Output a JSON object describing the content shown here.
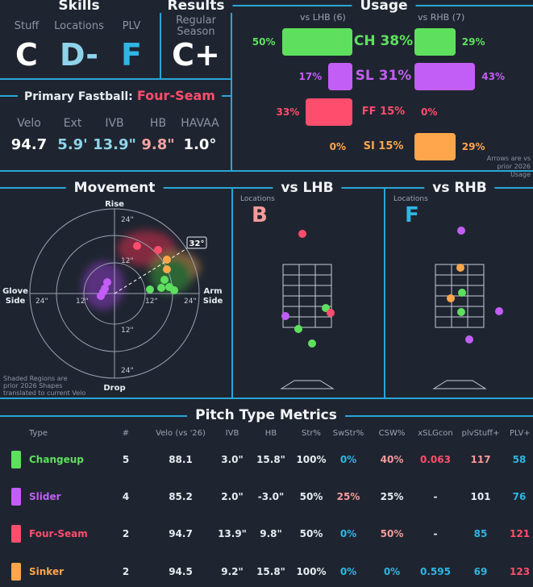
{
  "skills": {
    "title": "Skills",
    "stuff_label": "Stuff",
    "stuff_grade": "C",
    "locations_label": "Locations",
    "locations_grade": "D-",
    "plv_label": "PLV",
    "plv_grade": "F"
  },
  "results": {
    "title": "Results",
    "label_line1": "Regular",
    "label_line2": "Season",
    "grade": "C+"
  },
  "primary_fastball": {
    "label": "Primary Fastball:",
    "pitch": "Four-Seam",
    "metrics": [
      {
        "label": "Velo",
        "value": "94.7"
      },
      {
        "label": "Ext",
        "value": "5.9'"
      },
      {
        "label": "IVB",
        "value": "13.9\""
      },
      {
        "label": "HB",
        "value": "9.8\""
      },
      {
        "label": "HAVAA",
        "value": "1.0°"
      }
    ]
  },
  "usage": {
    "title": "Usage",
    "vs_lhb_label": "vs LHB (6)",
    "vs_rhb_label": "vs RHB (7)",
    "rows": [
      {
        "name": "CH 38%",
        "lhb": "50%",
        "rhb": "29%",
        "lhb_val": 50,
        "rhb_val": 29,
        "color": "#5ee05e"
      },
      {
        "name": "SL 31%",
        "lhb": "17%",
        "rhb": "43%",
        "lhb_val": 17,
        "rhb_val": 43,
        "color": "#c25ef5"
      },
      {
        "name": "FF 15%",
        "lhb": "33%",
        "rhb": "0%",
        "lhb_val": 33,
        "rhb_val": 0,
        "color": "#ff4d6d"
      },
      {
        "name": "SI 15%",
        "lhb": "0%",
        "rhb": "29%",
        "lhb_val": 0,
        "rhb_val": 29,
        "color": "#ffa64d"
      }
    ],
    "note_line1": "Arrows are vs",
    "note_line2": "prior 2026 Usage"
  },
  "movement": {
    "title": "Movement",
    "rise": "Rise",
    "drop": "Drop",
    "glove_line1": "Glove",
    "glove_line2": "Side",
    "arm_line1": "Arm",
    "arm_line2": "Side",
    "arm_angle": "32°",
    "ring_24_top": "24\"",
    "ring_12_top": "12\"",
    "ring_12_bottom": "12\"",
    "ring_24_bottom": "24\"",
    "ring_24_left": "24\"",
    "ring_12_left": "12\"",
    "ring_12_right": "12\"",
    "ring_24_right": "24\"",
    "note_line1": "Shaded Regions are",
    "note_line2": "prior 2026 Shapes",
    "note_line3": "translated to current Velo"
  },
  "vs_lhb": {
    "title": "vs LHB",
    "locations_label": "Locations",
    "grade": "B"
  },
  "vs_rhb": {
    "title": "vs RHB",
    "locations_label": "Locations",
    "grade": "F"
  },
  "metrics_table": {
    "title": "Pitch Type Metrics",
    "headers": [
      "Type",
      "#",
      "Velo (vs '26)",
      "IVB",
      "HB",
      "Str%",
      "SwStr%",
      "CSW%",
      "xSLGcon",
      "plvStuff+",
      "PLV+"
    ],
    "rows": [
      {
        "type": "Changeup",
        "count": "5",
        "velo": "88.1",
        "ivb": "3.0\"",
        "hb": "15.8\"",
        "str": "100%",
        "swstr": "0%",
        "csw": "40%",
        "xslg": "0.063",
        "stuff": "117",
        "plv": "58",
        "color": "#5ee05e"
      },
      {
        "type": "Slider",
        "count": "4",
        "velo": "85.2",
        "ivb": "2.0\"",
        "hb": "-3.0\"",
        "str": "50%",
        "swstr": "25%",
        "csw": "25%",
        "xslg": "-",
        "stuff": "101",
        "plv": "76",
        "color": "#c25ef5"
      },
      {
        "type": "Four-Seam",
        "count": "2",
        "velo": "94.7",
        "ivb": "13.9\"",
        "hb": "9.8\"",
        "str": "50%",
        "swstr": "0%",
        "csw": "50%",
        "xslg": "-",
        "stuff": "85",
        "plv": "121",
        "color": "#ff4d6d"
      },
      {
        "type": "Sinker",
        "count": "2",
        "velo": "94.5",
        "ivb": "9.2\"",
        "hb": "15.8\"",
        "str": "100%",
        "swstr": "0%",
        "csw": "0%",
        "xslg": "0.595",
        "stuff": "69",
        "plv": "123",
        "color": "#ffa64d"
      }
    ]
  }
}
